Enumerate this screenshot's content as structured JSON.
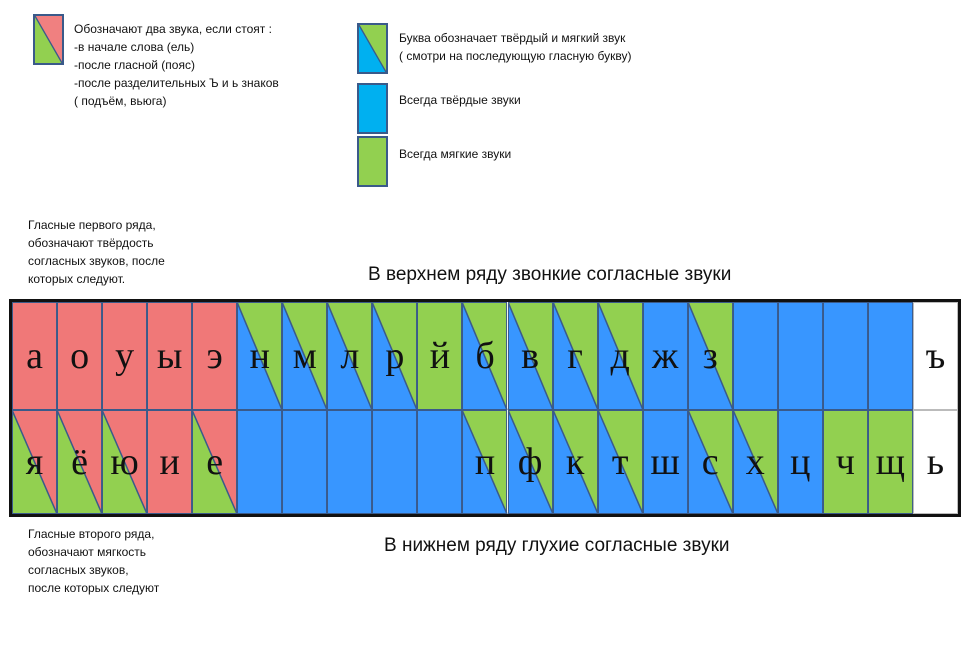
{
  "colors": {
    "vowel_red": "#f07878",
    "hard_blue": "#3896ff",
    "legend_blue": "#00b0f0",
    "soft_green": "#92d050",
    "white": "#ffffff",
    "border": "#3a5a8a"
  },
  "legend": {
    "two_sounds": {
      "title": "Обозначают два звука, если стоят :",
      "lines": [
        "-в начале слова (ель)",
        "-после гласной (пояс)",
        "-после разделительных Ъ и ь знаков",
        "( подъём, вьюга)"
      ]
    },
    "hard_soft": {
      "line1": "Буква обозначает твёрдый и мягкий звук",
      "line2": "( смотри на последующую гласную букву)"
    },
    "always_hard": "Всегда твёрдые звуки",
    "always_soft": "Всегда мягкие звуки"
  },
  "notes": {
    "first_row": [
      "Гласные первого ряда,",
      "обозначают твёрдость",
      " согласных звуков, после",
      "которых следуют."
    ],
    "second_row": [
      "Гласные второго ряда,",
      "обозначают мягкость",
      "согласных звуков,",
      "после которых следуют"
    ]
  },
  "captions": {
    "top": "В верхнем ряду звонкие согласные звуки",
    "bottom": "В нижнем ряду глухие согласные звуки"
  },
  "rows": [
    {
      "name": "top-row",
      "cells": [
        {
          "letter": "а",
          "kind": "red"
        },
        {
          "letter": "о",
          "kind": "red"
        },
        {
          "letter": "у",
          "kind": "red"
        },
        {
          "letter": "ы",
          "kind": "red"
        },
        {
          "letter": "э",
          "kind": "red"
        },
        {
          "letter": "н",
          "kind": "split"
        },
        {
          "letter": "м",
          "kind": "split"
        },
        {
          "letter": "л",
          "kind": "split"
        },
        {
          "letter": "р",
          "kind": "split"
        },
        {
          "letter": "й",
          "kind": "green"
        },
        {
          "letter": "б",
          "kind": "split"
        },
        {
          "letter": "в",
          "kind": "split"
        },
        {
          "letter": "г",
          "kind": "split"
        },
        {
          "letter": "д",
          "kind": "split"
        },
        {
          "letter": "ж",
          "kind": "blue"
        },
        {
          "letter": "з",
          "kind": "split"
        },
        {
          "letter": "",
          "kind": "blue"
        },
        {
          "letter": "",
          "kind": "blue"
        },
        {
          "letter": "",
          "kind": "blue"
        },
        {
          "letter": "",
          "kind": "blue"
        },
        {
          "letter": "ъ",
          "kind": "white"
        }
      ]
    },
    {
      "name": "bottom-row",
      "cells": [
        {
          "letter": "я",
          "kind": "redsplit"
        },
        {
          "letter": "ё",
          "kind": "redsplit"
        },
        {
          "letter": "ю",
          "kind": "redsplit"
        },
        {
          "letter": "и",
          "kind": "red"
        },
        {
          "letter": "е",
          "kind": "redsplit"
        },
        {
          "letter": "",
          "kind": "blue"
        },
        {
          "letter": "",
          "kind": "blue"
        },
        {
          "letter": "",
          "kind": "blue"
        },
        {
          "letter": "",
          "kind": "blue"
        },
        {
          "letter": "",
          "kind": "blue"
        },
        {
          "letter": "п",
          "kind": "split"
        },
        {
          "letter": "ф",
          "kind": "split"
        },
        {
          "letter": "к",
          "kind": "split"
        },
        {
          "letter": "т",
          "kind": "split"
        },
        {
          "letter": "ш",
          "kind": "blue"
        },
        {
          "letter": "с",
          "kind": "split"
        },
        {
          "letter": "х",
          "kind": "split"
        },
        {
          "letter": "ц",
          "kind": "blue"
        },
        {
          "letter": "ч",
          "kind": "green"
        },
        {
          "letter": "щ",
          "kind": "green"
        },
        {
          "letter": "ь",
          "kind": "white"
        }
      ]
    }
  ]
}
